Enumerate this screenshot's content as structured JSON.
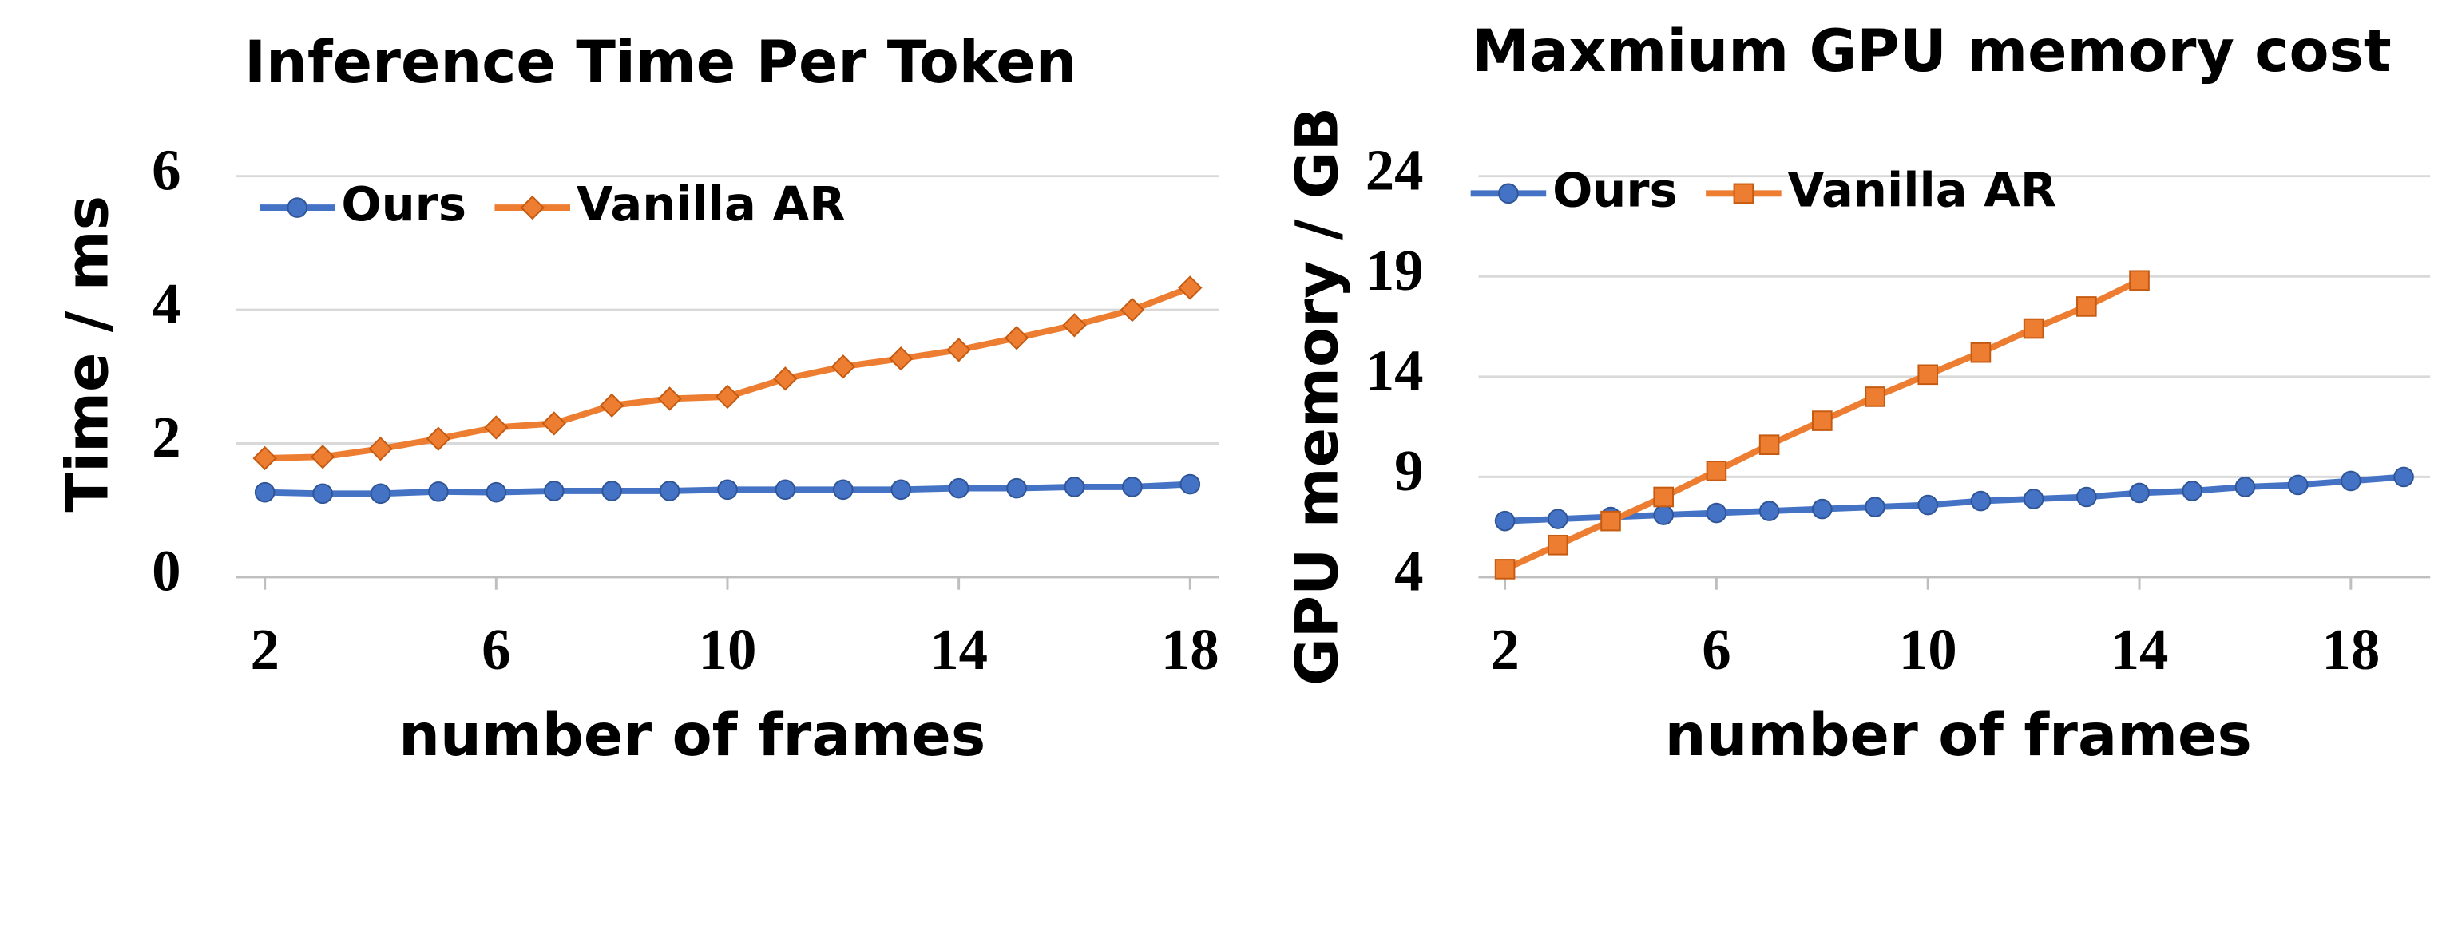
{
  "chart_data": [
    {
      "type": "line",
      "title": "Inference Time Per Token",
      "xlabel": "number of frames",
      "ylabel": "Time / ms",
      "xlim": [
        1.5,
        18.5
      ],
      "xticks": [
        2,
        6,
        10,
        14,
        18
      ],
      "ylim": [
        0,
        6
      ],
      "yticks": [
        0,
        2,
        4,
        6
      ],
      "grid": true,
      "legend": "upper left",
      "series": [
        {
          "name": "Ours",
          "color": "#4472c4",
          "marker": "circle",
          "x": [
            2,
            3,
            4,
            5,
            6,
            7,
            8,
            9,
            10,
            11,
            12,
            13,
            14,
            15,
            16,
            17,
            18
          ],
          "values": [
            1.27,
            1.25,
            1.25,
            1.28,
            1.27,
            1.29,
            1.29,
            1.29,
            1.31,
            1.31,
            1.31,
            1.31,
            1.33,
            1.33,
            1.35,
            1.35,
            1.39
          ]
        },
        {
          "name": "Vanilla AR",
          "color": "#ed7d31",
          "marker": "diamond",
          "x": [
            2,
            3,
            4,
            5,
            6,
            7,
            8,
            9,
            10,
            11,
            12,
            13,
            14,
            15,
            16,
            17,
            18
          ],
          "values": [
            1.78,
            1.8,
            1.92,
            2.07,
            2.24,
            2.3,
            2.57,
            2.67,
            2.7,
            2.97,
            3.15,
            3.27,
            3.4,
            3.58,
            3.77,
            4.0,
            4.33
          ]
        }
      ]
    },
    {
      "type": "line",
      "title": "Maxmium GPU memory cost",
      "xlabel": "number of frames",
      "ylabel": "GPU memory / GB",
      "xlim": [
        1.5,
        19.5
      ],
      "xticks": [
        2,
        6,
        10,
        14,
        18
      ],
      "ylim": [
        4,
        24
      ],
      "yticks": [
        4,
        9,
        14,
        19,
        24
      ],
      "grid": true,
      "legend": "upper left",
      "series": [
        {
          "name": "Ours",
          "color": "#4472c4",
          "marker": "circle",
          "x": [
            2,
            3,
            4,
            5,
            6,
            7,
            8,
            9,
            10,
            11,
            12,
            13,
            14,
            15,
            16,
            17,
            18,
            19
          ],
          "values": [
            6.8,
            6.9,
            7.0,
            7.1,
            7.2,
            7.3,
            7.4,
            7.5,
            7.6,
            7.8,
            7.9,
            8.0,
            8.2,
            8.3,
            8.5,
            8.6,
            8.8,
            9.0
          ]
        },
        {
          "name": "Vanilla AR",
          "color": "#ed7d31",
          "marker": "square",
          "x": [
            2,
            3,
            4,
            5,
            6,
            7,
            8,
            9,
            10,
            11,
            12,
            13,
            14
          ],
          "values": [
            4.4,
            5.6,
            6.8,
            8.0,
            9.3,
            10.6,
            11.8,
            13.0,
            14.1,
            15.2,
            16.4,
            17.5,
            18.8
          ]
        }
      ]
    }
  ]
}
